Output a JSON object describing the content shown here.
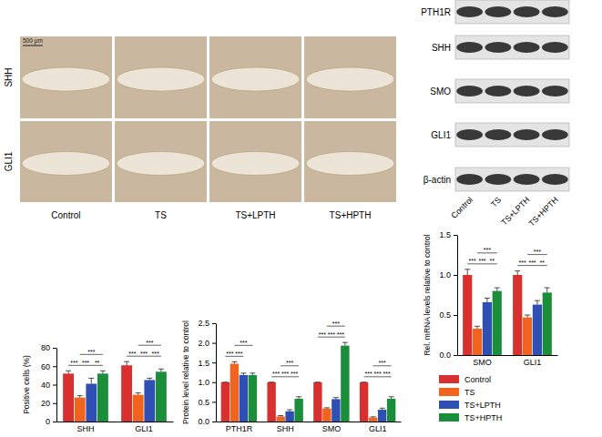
{
  "panels": {
    "ihc": {
      "rows": [
        "SHH",
        "GLI1"
      ],
      "columns": [
        "Control",
        "TS",
        "TS+LPTH",
        "TS+HPTH"
      ],
      "scale_bar": "500 μm"
    },
    "blot": {
      "bands": [
        "PTH1R",
        "SHH",
        "SMO",
        "GLI1",
        "β-actin"
      ],
      "lanes": [
        "Control",
        "TS",
        "TS+LPTH",
        "TS+HPTH"
      ]
    }
  },
  "chart_data": [
    {
      "type": "bar",
      "y_label": "Positive cells (%)",
      "categories": [
        "SHH",
        "GLI1"
      ],
      "ylim": [
        0,
        80
      ],
      "yticks": [
        0,
        20,
        40,
        60,
        80
      ],
      "series": [
        {
          "name": "Control",
          "color": "#d7302f",
          "values": [
            52,
            61
          ],
          "errors": [
            3,
            4
          ]
        },
        {
          "name": "TS",
          "color": "#f0641e",
          "values": [
            26,
            29
          ],
          "errors": [
            2,
            2
          ]
        },
        {
          "name": "TS+LPTH",
          "color": "#2f4fb4",
          "values": [
            41,
            45
          ],
          "errors": [
            6,
            2
          ]
        },
        {
          "name": "TS+HPTH",
          "color": "#1b8e3b",
          "values": [
            52,
            54
          ],
          "errors": [
            3,
            3
          ]
        }
      ],
      "annotations": [
        {
          "category": 0,
          "from": 0,
          "to": 1,
          "text": "***"
        },
        {
          "category": 0,
          "from": 1,
          "to": 2,
          "text": "***"
        },
        {
          "category": 0,
          "from": 2,
          "to": 3,
          "text": "**"
        },
        {
          "category": 0,
          "from": 1,
          "to": 3,
          "text": "***"
        },
        {
          "category": 1,
          "from": 0,
          "to": 1,
          "text": "***"
        },
        {
          "category": 1,
          "from": 1,
          "to": 2,
          "text": "***"
        },
        {
          "category": 1,
          "from": 2,
          "to": 3,
          "text": "***"
        },
        {
          "category": 1,
          "from": 1,
          "to": 3,
          "text": "***"
        }
      ]
    },
    {
      "type": "bar",
      "y_label": "Protein level relative to control",
      "categories": [
        "PTH1R",
        "SHH",
        "SMO",
        "GLI1"
      ],
      "ylim": [
        0,
        2.5
      ],
      "yticks": [
        {
          "value": 0,
          "label": "0.0"
        },
        {
          "value": 0.5,
          "label": "0.5"
        },
        {
          "value": 1,
          "label": "1.0"
        },
        {
          "value": 1.5,
          "label": "1.5"
        },
        {
          "value": 2,
          "label": "2.0"
        },
        {
          "value": 2.5,
          "label": "2.5"
        }
      ],
      "series": [
        {
          "name": "Control",
          "color": "#d7302f",
          "values": [
            1.0,
            1.0,
            1.0,
            1.0
          ],
          "errors": [
            0,
            0,
            0,
            0
          ]
        },
        {
          "name": "TS",
          "color": "#f0641e",
          "values": [
            1.47,
            0.13,
            0.33,
            0.1
          ],
          "errors": [
            0.05,
            0.02,
            0.02,
            0.02
          ]
        },
        {
          "name": "TS+LPTH",
          "color": "#2f4fb4",
          "values": [
            1.18,
            0.26,
            0.57,
            0.3
          ],
          "errors": [
            0.05,
            0.04,
            0.04,
            0.04
          ]
        },
        {
          "name": "TS+HPTH",
          "color": "#1b8e3b",
          "values": [
            1.18,
            0.58,
            1.93,
            0.58
          ],
          "errors": [
            0.05,
            0.05,
            0.08,
            0.05
          ]
        }
      ],
      "annotations": [
        {
          "category": 0,
          "from": 0,
          "to": 1,
          "text": "***"
        },
        {
          "category": 0,
          "from": 1,
          "to": 2,
          "text": "***"
        },
        {
          "category": 0,
          "from": 1,
          "to": 3,
          "text": "***"
        },
        {
          "category": 1,
          "from": 0,
          "to": 1,
          "text": "***"
        },
        {
          "category": 1,
          "from": 1,
          "to": 2,
          "text": "***"
        },
        {
          "category": 1,
          "from": 2,
          "to": 3,
          "text": "***"
        },
        {
          "category": 1,
          "from": 1,
          "to": 3,
          "text": "***"
        },
        {
          "category": 2,
          "from": 0,
          "to": 1,
          "text": "***"
        },
        {
          "category": 2,
          "from": 1,
          "to": 2,
          "text": "***"
        },
        {
          "category": 2,
          "from": 2,
          "to": 3,
          "text": "***"
        },
        {
          "category": 2,
          "from": 1,
          "to": 3,
          "text": "***"
        },
        {
          "category": 3,
          "from": 0,
          "to": 1,
          "text": "***"
        },
        {
          "category": 3,
          "from": 1,
          "to": 2,
          "text": "***"
        },
        {
          "category": 3,
          "from": 2,
          "to": 3,
          "text": "***"
        },
        {
          "category": 3,
          "from": 1,
          "to": 3,
          "text": "***"
        }
      ]
    },
    {
      "type": "bar",
      "y_label": "Rel. mRNA levels relative to control",
      "categories": [
        "SMO",
        "GLI1"
      ],
      "ylim": [
        0,
        1.5
      ],
      "yticks": [
        {
          "value": 0,
          "label": "0.0"
        },
        {
          "value": 0.5,
          "label": "0.5"
        },
        {
          "value": 1,
          "label": "1.0"
        },
        {
          "value": 1.5,
          "label": "1.5"
        }
      ],
      "legend": "below",
      "series": [
        {
          "name": "Control",
          "color": "#d7302f",
          "values": [
            1.0,
            1.0
          ],
          "errors": [
            0.07,
            0.05
          ]
        },
        {
          "name": "TS",
          "color": "#f0641e",
          "values": [
            0.33,
            0.47
          ],
          "errors": [
            0.03,
            0.03
          ]
        },
        {
          "name": "TS+LPTH",
          "color": "#2f4fb4",
          "values": [
            0.66,
            0.63
          ],
          "errors": [
            0.05,
            0.05
          ]
        },
        {
          "name": "TS+HPTH",
          "color": "#1b8e3b",
          "values": [
            0.8,
            0.78
          ],
          "errors": [
            0.04,
            0.06
          ]
        }
      ],
      "annotations": [
        {
          "category": 0,
          "from": 0,
          "to": 1,
          "text": "***"
        },
        {
          "category": 0,
          "from": 1,
          "to": 2,
          "text": "***"
        },
        {
          "category": 0,
          "from": 2,
          "to": 3,
          "text": "**"
        },
        {
          "category": 0,
          "from": 1,
          "to": 3,
          "text": "***"
        },
        {
          "category": 1,
          "from": 0,
          "to": 1,
          "text": "***"
        },
        {
          "category": 1,
          "from": 1,
          "to": 2,
          "text": "***"
        },
        {
          "category": 1,
          "from": 2,
          "to": 3,
          "text": "**"
        },
        {
          "category": 1,
          "from": 1,
          "to": 3,
          "text": "***"
        }
      ]
    }
  ]
}
